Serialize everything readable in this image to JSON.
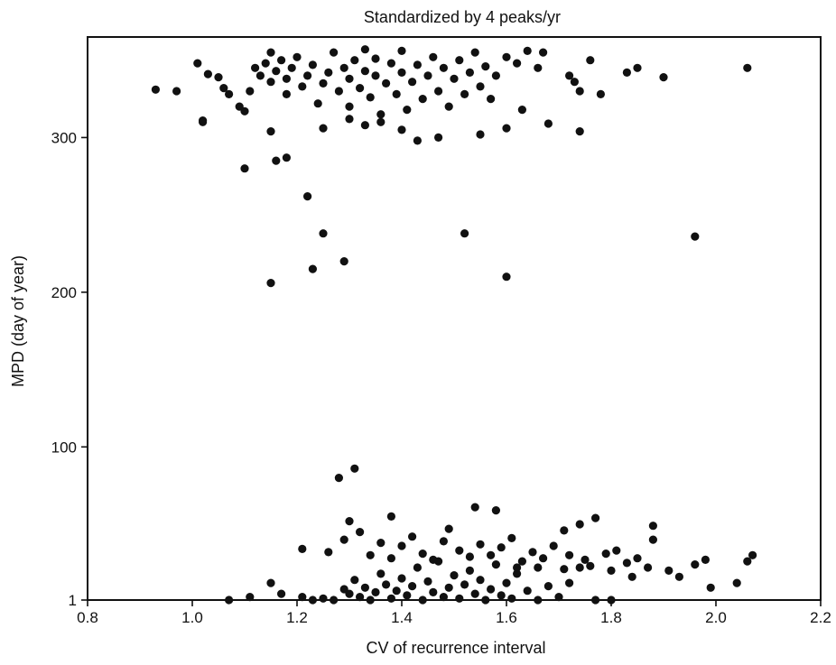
{
  "chart_data": {
    "type": "scatter",
    "title": "Standardized by 4 peaks/yr",
    "xlabel": "CV of recurrence interval",
    "ylabel": "MPD (day of year)",
    "xlim": [
      0.8,
      2.2
    ],
    "ylim": [
      1,
      365
    ],
    "x_ticks": [
      0.8,
      1.0,
      1.2,
      1.4,
      1.6,
      1.8,
      2.0,
      2.2
    ],
    "x_tick_labels": [
      "0.8",
      "1.0",
      "1.2",
      "1.4",
      "1.6",
      "1.8",
      "2.0",
      "2.2"
    ],
    "y_ticks": [
      1,
      100,
      200,
      300
    ],
    "y_tick_labels": [
      "1",
      "100",
      "200",
      "300"
    ],
    "grid": false,
    "series": [
      {
        "marker_color": "#111111",
        "points": [
          [
            0.93,
            331
          ],
          [
            0.97,
            330
          ],
          [
            1.01,
            348
          ],
          [
            1.03,
            341
          ],
          [
            1.02,
            311
          ],
          [
            1.05,
            339
          ],
          [
            1.06,
            332
          ],
          [
            1.07,
            328
          ],
          [
            1.09,
            320
          ],
          [
            1.1,
            317
          ],
          [
            1.11,
            330
          ],
          [
            1.12,
            345
          ],
          [
            1.13,
            340
          ],
          [
            1.14,
            348
          ],
          [
            1.15,
            355
          ],
          [
            1.15,
            336
          ],
          [
            1.16,
            343
          ],
          [
            1.17,
            350
          ],
          [
            1.18,
            328
          ],
          [
            1.18,
            338
          ],
          [
            1.19,
            345
          ],
          [
            1.2,
            352
          ],
          [
            1.21,
            333
          ],
          [
            1.22,
            340
          ],
          [
            1.23,
            347
          ],
          [
            1.24,
            322
          ],
          [
            1.25,
            335
          ],
          [
            1.26,
            342
          ],
          [
            1.27,
            355
          ],
          [
            1.28,
            330
          ],
          [
            1.29,
            345
          ],
          [
            1.3,
            338
          ],
          [
            1.3,
            320
          ],
          [
            1.31,
            350
          ],
          [
            1.32,
            332
          ],
          [
            1.33,
            343
          ],
          [
            1.33,
            357
          ],
          [
            1.34,
            326
          ],
          [
            1.35,
            340
          ],
          [
            1.35,
            351
          ],
          [
            1.36,
            315
          ],
          [
            1.37,
            335
          ],
          [
            1.38,
            348
          ],
          [
            1.39,
            328
          ],
          [
            1.4,
            342
          ],
          [
            1.4,
            356
          ],
          [
            1.41,
            318
          ],
          [
            1.42,
            336
          ],
          [
            1.43,
            347
          ],
          [
            1.44,
            325
          ],
          [
            1.45,
            340
          ],
          [
            1.46,
            352
          ],
          [
            1.47,
            330
          ],
          [
            1.48,
            345
          ],
          [
            1.49,
            320
          ],
          [
            1.5,
            338
          ],
          [
            1.51,
            350
          ],
          [
            1.52,
            328
          ],
          [
            1.53,
            342
          ],
          [
            1.54,
            355
          ],
          [
            1.55,
            333
          ],
          [
            1.56,
            346
          ],
          [
            1.57,
            325
          ],
          [
            1.58,
            340
          ],
          [
            1.6,
            352
          ],
          [
            1.62,
            348
          ],
          [
            1.63,
            318
          ],
          [
            1.64,
            356
          ],
          [
            1.66,
            345
          ],
          [
            1.67,
            355
          ],
          [
            1.72,
            340
          ],
          [
            1.73,
            336
          ],
          [
            1.74,
            330
          ],
          [
            1.76,
            350
          ],
          [
            1.78,
            328
          ],
          [
            1.83,
            342
          ],
          [
            1.85,
            345
          ],
          [
            1.9,
            339
          ],
          [
            2.06,
            345
          ],
          [
            1.25,
            306
          ],
          [
            1.3,
            312
          ],
          [
            1.33,
            308
          ],
          [
            1.36,
            310
          ],
          [
            1.4,
            305
          ],
          [
            1.43,
            298
          ],
          [
            1.47,
            300
          ],
          [
            1.55,
            302
          ],
          [
            1.6,
            306
          ],
          [
            1.68,
            309
          ],
          [
            1.74,
            304
          ],
          [
            1.02,
            310
          ],
          [
            1.15,
            304
          ],
          [
            1.1,
            280
          ],
          [
            1.16,
            285
          ],
          [
            1.18,
            287
          ],
          [
            1.22,
            262
          ],
          [
            1.25,
            238
          ],
          [
            1.23,
            215
          ],
          [
            1.29,
            220
          ],
          [
            1.15,
            206
          ],
          [
            1.52,
            238
          ],
          [
            1.6,
            210
          ],
          [
            1.96,
            236
          ],
          [
            1.28,
            80
          ],
          [
            1.31,
            86
          ],
          [
            1.38,
            55
          ],
          [
            1.54,
            61
          ],
          [
            1.58,
            59
          ],
          [
            1.07,
            1
          ],
          [
            1.11,
            3
          ],
          [
            1.15,
            12
          ],
          [
            1.17,
            5
          ],
          [
            1.21,
            3
          ],
          [
            1.23,
            1
          ],
          [
            1.25,
            2
          ],
          [
            1.27,
            1
          ],
          [
            1.29,
            8
          ],
          [
            1.3,
            5
          ],
          [
            1.31,
            14
          ],
          [
            1.32,
            3
          ],
          [
            1.33,
            9
          ],
          [
            1.34,
            1
          ],
          [
            1.35,
            6
          ],
          [
            1.36,
            18
          ],
          [
            1.37,
            11
          ],
          [
            1.38,
            2
          ],
          [
            1.39,
            7
          ],
          [
            1.4,
            15
          ],
          [
            1.41,
            4
          ],
          [
            1.42,
            10
          ],
          [
            1.43,
            22
          ],
          [
            1.44,
            1
          ],
          [
            1.45,
            13
          ],
          [
            1.46,
            6
          ],
          [
            1.47,
            26
          ],
          [
            1.48,
            3
          ],
          [
            1.49,
            9
          ],
          [
            1.5,
            17
          ],
          [
            1.51,
            2
          ],
          [
            1.52,
            11
          ],
          [
            1.53,
            20
          ],
          [
            1.54,
            5
          ],
          [
            1.55,
            14
          ],
          [
            1.56,
            1
          ],
          [
            1.57,
            8
          ],
          [
            1.58,
            24
          ],
          [
            1.59,
            4
          ],
          [
            1.6,
            12
          ],
          [
            1.61,
            2
          ],
          [
            1.62,
            18
          ],
          [
            1.64,
            7
          ],
          [
            1.66,
            1
          ],
          [
            1.68,
            10
          ],
          [
            1.7,
            3
          ],
          [
            1.72,
            12
          ],
          [
            1.74,
            22
          ],
          [
            1.77,
            1
          ],
          [
            1.8,
            1
          ],
          [
            1.21,
            34
          ],
          [
            1.26,
            32
          ],
          [
            1.29,
            40
          ],
          [
            1.3,
            52
          ],
          [
            1.32,
            45
          ],
          [
            1.34,
            30
          ],
          [
            1.36,
            38
          ],
          [
            1.38,
            28
          ],
          [
            1.4,
            36
          ],
          [
            1.42,
            42
          ],
          [
            1.44,
            31
          ],
          [
            1.46,
            27
          ],
          [
            1.48,
            39
          ],
          [
            1.49,
            47
          ],
          [
            1.51,
            33
          ],
          [
            1.53,
            29
          ],
          [
            1.55,
            37
          ],
          [
            1.57,
            30
          ],
          [
            1.59,
            35
          ],
          [
            1.61,
            41
          ],
          [
            1.63,
            26
          ],
          [
            1.65,
            32
          ],
          [
            1.67,
            28
          ],
          [
            1.69,
            36
          ],
          [
            1.71,
            46
          ],
          [
            1.72,
            30
          ],
          [
            1.74,
            50
          ],
          [
            1.75,
            27
          ],
          [
            1.77,
            54
          ],
          [
            1.79,
            31
          ],
          [
            1.81,
            33
          ],
          [
            1.83,
            25
          ],
          [
            1.85,
            28
          ],
          [
            1.88,
            49
          ],
          [
            1.88,
            40
          ],
          [
            1.91,
            20
          ],
          [
            1.93,
            16
          ],
          [
            1.96,
            24
          ],
          [
            1.98,
            27
          ],
          [
            1.99,
            9
          ],
          [
            2.04,
            12
          ],
          [
            2.06,
            26
          ],
          [
            2.07,
            30
          ],
          [
            1.62,
            22
          ],
          [
            1.66,
            22
          ],
          [
            1.71,
            21
          ],
          [
            1.76,
            23
          ],
          [
            1.8,
            20
          ],
          [
            1.87,
            22
          ],
          [
            1.84,
            16
          ]
        ]
      }
    ]
  }
}
